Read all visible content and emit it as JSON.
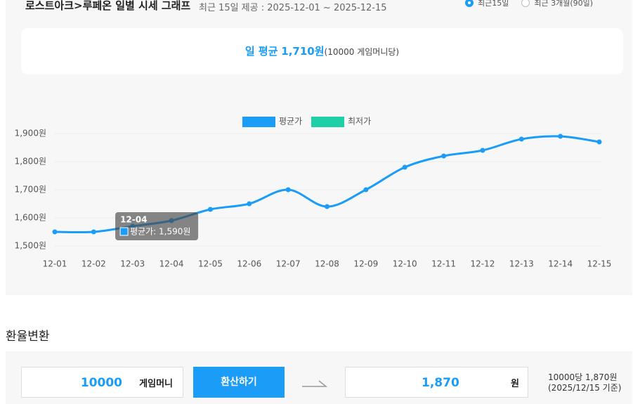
{
  "header": {
    "title": "로스트아크>루페온 일별 시세 그래프",
    "subtitle": "최근 15일 제공 : 2025-12-01 ~ 2025-12-15",
    "options": [
      {
        "label": "최근15일",
        "selected": true
      },
      {
        "label": "최근 3개월(90일)",
        "selected": false
      }
    ]
  },
  "summary": {
    "prefix": "일 평균",
    "value": "1,710원",
    "note": "(10000 게임머니당)"
  },
  "chart_data": {
    "type": "line",
    "categories": [
      "12-01",
      "12-02",
      "12-03",
      "12-04",
      "12-05",
      "12-06",
      "12-07",
      "12-08",
      "12-09",
      "12-10",
      "12-11",
      "12-12",
      "12-13",
      "12-14",
      "12-15"
    ],
    "series": [
      {
        "name": "평균가",
        "color": "#1a9cf7",
        "values": [
          1550,
          1550,
          1570,
          1590,
          1630,
          1650,
          1700,
          1640,
          1700,
          1780,
          1820,
          1840,
          1880,
          1890,
          1870
        ]
      },
      {
        "name": "최저가",
        "color": "#1ecfa8",
        "values": [
          null,
          null,
          null,
          null,
          null,
          null,
          null,
          null,
          null,
          null,
          null,
          null,
          null,
          null,
          null
        ]
      }
    ],
    "ylim": [
      1500,
      1900
    ],
    "yticks": [
      {
        "value": 1500,
        "label": "1,500원"
      },
      {
        "value": 1600,
        "label": "1,600원"
      },
      {
        "value": 1700,
        "label": "1,700원"
      },
      {
        "value": 1800,
        "label": "1,800원"
      },
      {
        "value": 1900,
        "label": "1,900원"
      }
    ],
    "grid": true,
    "legend": "top",
    "tooltip": {
      "title": "12-04",
      "text": "평균가: 1,590원"
    }
  },
  "converter": {
    "title": "환율변환",
    "amount": "10000",
    "unit": "게임머니",
    "button": "환산하기",
    "result": "1,870",
    "result_unit": "원",
    "rate": "10000당 1,870원",
    "date": "(2025/12/15 기준)"
  }
}
